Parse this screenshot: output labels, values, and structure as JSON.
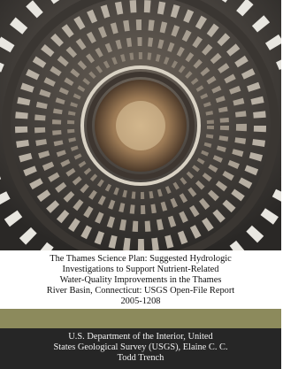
{
  "cover": {
    "title_lines": [
      "The Thames Science Plan: Suggested Hydrologic",
      "Investigations to Support Nutrient-Related",
      "Water-Quality Improvements in the Thames",
      "River Basin, Connecticut: USGS Open-File Report",
      "2005-1208"
    ],
    "author_lines": [
      "U.S. Department of the Interior, United",
      "States Geological Survey (USGS), Elaine C. C.",
      "Todd Trench"
    ]
  }
}
